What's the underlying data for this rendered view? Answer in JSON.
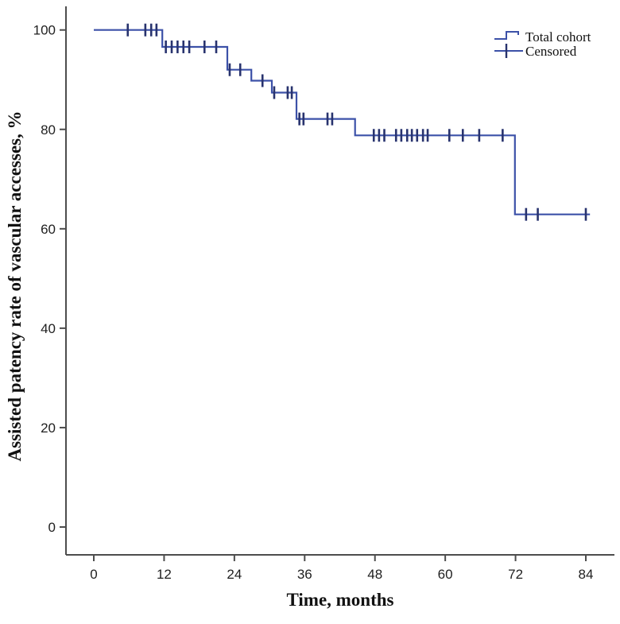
{
  "figure": {
    "background": "#ffffff",
    "axis_color": "#4d4d4d",
    "text_color": "#1f1f1f"
  },
  "chart_data": {
    "type": "line",
    "subtype": "kaplan-meier-step-survival",
    "title": "",
    "xlabel": "Time, months",
    "ylabel": "Assisted patency rate of vascular accesses, %",
    "x_ticks": [
      0,
      12,
      24,
      36,
      48,
      60,
      72,
      84
    ],
    "y_ticks": [
      0,
      20,
      40,
      60,
      80,
      100
    ],
    "xlim": [
      -4.8,
      88.9
    ],
    "ylim": [
      -5.6,
      104.8
    ],
    "grid": false,
    "legend": {
      "position": "top-right",
      "entries": [
        {
          "label": "Total cohort",
          "symbol": "step-line"
        },
        {
          "label": "Censored",
          "symbol": "plus"
        }
      ]
    },
    "series": [
      {
        "name": "Total cohort",
        "color": "#3c51a8",
        "step_points": [
          [
            0,
            100
          ],
          [
            11.7,
            100
          ],
          [
            11.7,
            96.6
          ],
          [
            22.8,
            96.6
          ],
          [
            22.8,
            92.0
          ],
          [
            26.9,
            92.0
          ],
          [
            26.9,
            89.8
          ],
          [
            30.4,
            89.8
          ],
          [
            30.4,
            87.4
          ],
          [
            34.6,
            87.4
          ],
          [
            34.6,
            82.1
          ],
          [
            44.6,
            82.1
          ],
          [
            44.6,
            78.8
          ],
          [
            71.9,
            78.8
          ],
          [
            71.9,
            62.9
          ],
          [
            84.7,
            62.9
          ]
        ]
      },
      {
        "name": "Censored",
        "color": "#28336e",
        "marker": "plus",
        "points": [
          [
            5.8,
            100
          ],
          [
            8.8,
            100
          ],
          [
            9.8,
            100
          ],
          [
            10.7,
            100
          ],
          [
            12.3,
            96.6
          ],
          [
            13.3,
            96.6
          ],
          [
            14.3,
            96.6
          ],
          [
            15.3,
            96.6
          ],
          [
            16.3,
            96.6
          ],
          [
            18.9,
            96.6
          ],
          [
            20.9,
            96.6
          ],
          [
            23.2,
            92.0
          ],
          [
            25.0,
            92.0
          ],
          [
            28.8,
            89.8
          ],
          [
            30.8,
            87.4
          ],
          [
            33.1,
            87.4
          ],
          [
            33.8,
            87.4
          ],
          [
            35.1,
            82.1
          ],
          [
            35.8,
            82.1
          ],
          [
            39.9,
            82.1
          ],
          [
            40.7,
            82.1
          ],
          [
            47.8,
            78.8
          ],
          [
            48.7,
            78.8
          ],
          [
            49.6,
            78.8
          ],
          [
            51.6,
            78.8
          ],
          [
            52.5,
            78.8
          ],
          [
            53.5,
            78.8
          ],
          [
            54.3,
            78.8
          ],
          [
            55.2,
            78.8
          ],
          [
            56.2,
            78.8
          ],
          [
            57.0,
            78.8
          ],
          [
            60.7,
            78.8
          ],
          [
            63.0,
            78.8
          ],
          [
            65.8,
            78.8
          ],
          [
            69.8,
            78.8
          ],
          [
            73.8,
            62.9
          ],
          [
            75.8,
            62.9
          ],
          [
            84.0,
            62.9
          ]
        ]
      }
    ]
  }
}
